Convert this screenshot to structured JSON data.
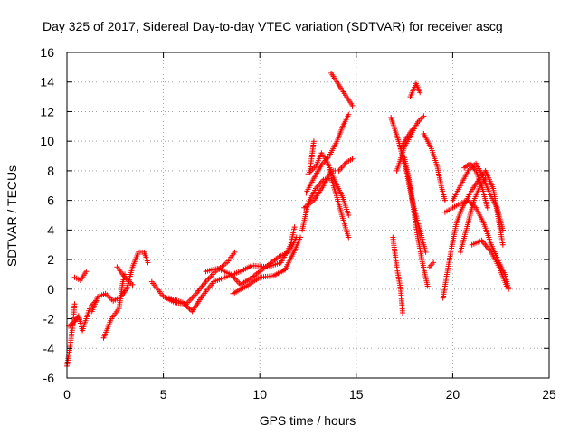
{
  "chart_data": {
    "type": "scatter",
    "title": "Day 325 of 2017, Sidereal Day-to-day VTEC variation (SDTVAR) for receiver ascg",
    "xlabel": "GPS time / hours",
    "ylabel": "SDTVAR / TECUs",
    "xlim": [
      0,
      25
    ],
    "ylim": [
      -6,
      16
    ],
    "xticks": [
      0,
      5,
      10,
      15,
      20,
      25
    ],
    "yticks": [
      -6,
      -4,
      -2,
      0,
      2,
      4,
      6,
      8,
      10,
      12,
      14,
      16
    ],
    "grid": true,
    "marker": "+",
    "color": "#ff0000",
    "tracks": [
      [
        [
          0.0,
          -5.2
        ],
        [
          0.15,
          -4.0
        ],
        [
          0.3,
          -2.5
        ],
        [
          0.4,
          -1.0
        ]
      ],
      [
        [
          0.1,
          -2.5
        ],
        [
          0.4,
          -2.2
        ],
        [
          0.6,
          -1.8
        ],
        [
          0.8,
          -2.8
        ],
        [
          1.0,
          -2.0
        ],
        [
          1.2,
          -1.2
        ],
        [
          1.5,
          -0.8
        ]
      ],
      [
        [
          0.4,
          0.8
        ],
        [
          0.7,
          0.6
        ],
        [
          1.0,
          1.2
        ]
      ],
      [
        [
          1.3,
          -1.5
        ],
        [
          1.6,
          -0.5
        ],
        [
          2.0,
          -0.3
        ],
        [
          2.4,
          -0.8
        ],
        [
          2.8,
          -0.5
        ],
        [
          3.1,
          0.0
        ],
        [
          3.4,
          1.5
        ],
        [
          3.7,
          2.5
        ],
        [
          4.0,
          2.5
        ],
        [
          4.2,
          1.8
        ]
      ],
      [
        [
          1.9,
          -3.3
        ],
        [
          2.3,
          -2.0
        ],
        [
          2.7,
          -1.3
        ],
        [
          2.9,
          0.5
        ],
        [
          3.0,
          1.0
        ]
      ],
      [
        [
          2.6,
          1.5
        ],
        [
          3.0,
          0.8
        ],
        [
          3.4,
          0.3
        ]
      ],
      [
        [
          4.4,
          0.5
        ],
        [
          5.0,
          -0.5
        ],
        [
          5.6,
          -0.9
        ],
        [
          6.2,
          -1.0
        ],
        [
          6.7,
          -0.3
        ],
        [
          7.2,
          0.5
        ],
        [
          7.7,
          1.2
        ],
        [
          8.3,
          1.8
        ],
        [
          8.7,
          2.5
        ]
      ],
      [
        [
          5.3,
          -0.6
        ],
        [
          6.0,
          -0.9
        ],
        [
          6.5,
          -1.5
        ],
        [
          7.0,
          -0.5
        ],
        [
          7.6,
          0.5
        ],
        [
          8.2,
          0.8
        ],
        [
          9.0,
          1.2
        ],
        [
          9.6,
          1.6
        ],
        [
          10.4,
          1.5
        ],
        [
          11.1,
          1.8
        ],
        [
          11.6,
          3.0
        ],
        [
          11.8,
          4.2
        ]
      ],
      [
        [
          7.2,
          1.2
        ],
        [
          7.8,
          1.4
        ],
        [
          8.5,
          1.0
        ],
        [
          9.0,
          0.3
        ],
        [
          9.6,
          0.8
        ],
        [
          10.3,
          1.5
        ],
        [
          11.0,
          2.2
        ],
        [
          11.5,
          2.5
        ],
        [
          11.9,
          3.5
        ]
      ],
      [
        [
          8.6,
          -0.3
        ],
        [
          9.3,
          0.2
        ],
        [
          10.0,
          0.8
        ],
        [
          10.7,
          0.9
        ],
        [
          11.3,
          1.3
        ],
        [
          11.8,
          2.6
        ],
        [
          12.1,
          3.5
        ]
      ],
      [
        [
          12.2,
          4.0
        ],
        [
          12.5,
          5.8
        ],
        [
          12.9,
          6.8
        ],
        [
          13.3,
          7.4
        ],
        [
          13.7,
          7.5
        ],
        [
          14.0,
          6.2
        ],
        [
          14.3,
          4.8
        ],
        [
          14.6,
          3.5
        ]
      ],
      [
        [
          12.4,
          6.5
        ],
        [
          12.8,
          7.5
        ],
        [
          13.2,
          8.4
        ],
        [
          13.6,
          9.0
        ],
        [
          14.0,
          10.0
        ],
        [
          14.3,
          11.0
        ],
        [
          14.6,
          11.8
        ]
      ],
      [
        [
          12.5,
          7.8
        ],
        [
          12.9,
          8.3
        ],
        [
          13.2,
          9.2
        ],
        [
          13.5,
          8.6
        ],
        [
          13.9,
          7.3
        ],
        [
          14.3,
          6.2
        ],
        [
          14.6,
          5.0
        ]
      ],
      [
        [
          12.3,
          5.5
        ],
        [
          12.8,
          6.0
        ],
        [
          13.3,
          7.0
        ],
        [
          13.7,
          8.0
        ],
        [
          14.1,
          8.0
        ],
        [
          14.5,
          8.6
        ],
        [
          14.8,
          8.8
        ]
      ],
      [
        [
          12.6,
          8.0
        ],
        [
          12.8,
          10.0
        ]
      ],
      [
        [
          13.7,
          14.6
        ],
        [
          14.1,
          13.8
        ],
        [
          14.5,
          13.0
        ],
        [
          14.8,
          12.4
        ]
      ],
      [
        [
          16.8,
          11.6
        ],
        [
          17.2,
          10.0
        ],
        [
          17.6,
          8.0
        ],
        [
          17.9,
          6.0
        ],
        [
          18.3,
          4.0
        ],
        [
          18.6,
          2.5
        ]
      ],
      [
        [
          16.9,
          3.5
        ],
        [
          17.1,
          1.5
        ],
        [
          17.3,
          0.0
        ],
        [
          17.4,
          -1.6
        ]
      ],
      [
        [
          17.1,
          8.0
        ],
        [
          17.5,
          9.6
        ],
        [
          17.9,
          10.6
        ],
        [
          18.2,
          11.3
        ],
        [
          18.5,
          11.7
        ]
      ],
      [
        [
          17.3,
          9.5
        ],
        [
          17.6,
          10.2
        ],
        [
          17.9,
          10.8
        ]
      ],
      [
        [
          17.5,
          8.9
        ],
        [
          17.8,
          7.0
        ],
        [
          18.1,
          4.2
        ],
        [
          18.4,
          2.0
        ],
        [
          18.7,
          0.2
        ]
      ],
      [
        [
          17.8,
          13.0
        ],
        [
          18.1,
          13.9
        ],
        [
          18.3,
          13.3
        ]
      ],
      [
        [
          18.5,
          10.5
        ],
        [
          18.9,
          9.5
        ],
        [
          19.2,
          8.3
        ],
        [
          19.4,
          7.0
        ],
        [
          19.6,
          6.0
        ]
      ],
      [
        [
          18.8,
          1.5
        ],
        [
          19.0,
          1.8
        ]
      ],
      [
        [
          19.5,
          -0.6
        ],
        [
          19.7,
          1.0
        ],
        [
          19.9,
          2.5
        ],
        [
          20.2,
          4.5
        ],
        [
          20.5,
          5.5
        ],
        [
          20.9,
          6.5
        ],
        [
          21.3,
          7.3
        ],
        [
          21.7,
          8.0
        ],
        [
          22.1,
          6.8
        ],
        [
          22.4,
          4.5
        ],
        [
          22.6,
          3.0
        ]
      ],
      [
        [
          19.6,
          5.2
        ],
        [
          20.0,
          5.5
        ],
        [
          20.4,
          5.8
        ],
        [
          20.8,
          6.0
        ],
        [
          21.2,
          5.5
        ],
        [
          21.6,
          4.5
        ],
        [
          22.0,
          3.0
        ],
        [
          22.4,
          1.8
        ],
        [
          22.7,
          1.0
        ],
        [
          22.9,
          0.0
        ]
      ],
      [
        [
          20.0,
          6.0
        ],
        [
          20.4,
          7.0
        ],
        [
          20.8,
          8.0
        ],
        [
          21.2,
          8.5
        ],
        [
          21.5,
          7.8
        ],
        [
          21.9,
          6.5
        ],
        [
          22.3,
          5.5
        ],
        [
          22.6,
          4.0
        ]
      ],
      [
        [
          20.4,
          2.5
        ],
        [
          20.8,
          4.5
        ],
        [
          21.1,
          6.0
        ],
        [
          21.4,
          6.9
        ],
        [
          21.7,
          7.5
        ]
      ],
      [
        [
          20.6,
          8.2
        ],
        [
          20.9,
          8.5
        ],
        [
          21.2,
          8.0
        ],
        [
          21.5,
          7.0
        ],
        [
          21.8,
          5.5
        ]
      ],
      [
        [
          21.0,
          3.0
        ],
        [
          21.5,
          3.3
        ],
        [
          22.0,
          2.5
        ],
        [
          22.4,
          1.5
        ],
        [
          22.8,
          0.2
        ]
      ]
    ]
  }
}
